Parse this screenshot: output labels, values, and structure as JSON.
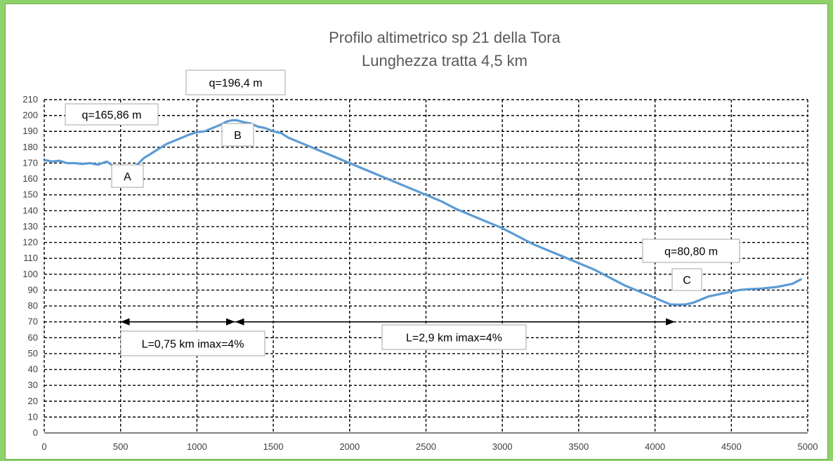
{
  "chart_data": {
    "type": "line",
    "title": "Profilo altimetrico sp 21 della Tora",
    "subtitle": "Lunghezza tratta 4,5 km",
    "xlabel": "",
    "ylabel": "",
    "xlim": [
      0,
      5000
    ],
    "ylim": [
      0,
      210
    ],
    "xticks": [
      0,
      500,
      1000,
      1500,
      2000,
      2500,
      3000,
      3500,
      4000,
      4500,
      5000
    ],
    "yticks": [
      0,
      10,
      20,
      30,
      40,
      50,
      60,
      70,
      80,
      90,
      100,
      110,
      120,
      130,
      140,
      150,
      160,
      170,
      180,
      190,
      200,
      210
    ],
    "grid": true,
    "line_color": "#5b9bd5",
    "series": [
      {
        "name": "",
        "x": [
          0,
          50,
          100,
          150,
          200,
          250,
          300,
          350,
          380,
          410,
          440,
          470,
          500,
          530,
          560,
          590,
          620,
          650,
          700,
          750,
          800,
          850,
          900,
          950,
          1000,
          1050,
          1100,
          1150,
          1200,
          1230,
          1260,
          1300,
          1350,
          1400,
          1450,
          1500,
          1550,
          1600,
          1650,
          1700,
          1800,
          1900,
          2000,
          2100,
          2200,
          2300,
          2400,
          2500,
          2600,
          2700,
          2800,
          2900,
          3000,
          3100,
          3200,
          3300,
          3400,
          3500,
          3600,
          3700,
          3800,
          3900,
          4000,
          4100,
          4150,
          4200,
          4250,
          4300,
          4350,
          4400,
          4450,
          4500,
          4550,
          4600,
          4700,
          4800,
          4900,
          4960
        ],
        "y": [
          172,
          171,
          171.5,
          170,
          170,
          169.5,
          170,
          169,
          170,
          171,
          169,
          167,
          166,
          166,
          165,
          168,
          170,
          173,
          176,
          179,
          182,
          184,
          186,
          188,
          189.5,
          190,
          192,
          194,
          196.4,
          197,
          197,
          196,
          195,
          193,
          192,
          190,
          189,
          186,
          184,
          182,
          178,
          174,
          170,
          166,
          162,
          158,
          154,
          150,
          146,
          141,
          137,
          133,
          129,
          124,
          119,
          115,
          111,
          107,
          103,
          98,
          93,
          89,
          85,
          81,
          80.8,
          81,
          82,
          84,
          86,
          87,
          88,
          89,
          90,
          90.5,
          91,
          92,
          94,
          97
        ]
      }
    ],
    "annotations": [
      {
        "text": "q=165,86 m"
      },
      {
        "text": "q=196,4 m"
      },
      {
        "text": "A"
      },
      {
        "text": "B"
      },
      {
        "text": "C"
      },
      {
        "text": "q=80,80 m"
      },
      {
        "text": "L=0,75 km imax=4%"
      },
      {
        "text": "L=2,9 km imax=4%"
      }
    ],
    "dimension_lines": [
      {
        "x_start": 500,
        "x_end": 1250,
        "y": 70
      },
      {
        "x_start": 1250,
        "x_end": 4130,
        "y": 70
      }
    ]
  }
}
